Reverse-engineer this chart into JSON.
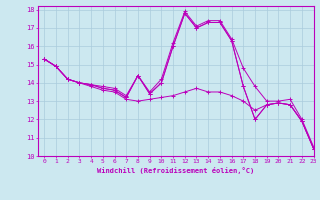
{
  "title": "",
  "xlabel": "Windchill (Refroidissement éolien,°C)",
  "ylabel": "",
  "xlim": [
    -0.5,
    23
  ],
  "ylim": [
    10,
    18.2
  ],
  "yticks": [
    10,
    11,
    12,
    13,
    14,
    15,
    16,
    17,
    18
  ],
  "xticks": [
    0,
    1,
    2,
    3,
    4,
    5,
    6,
    7,
    8,
    9,
    10,
    11,
    12,
    13,
    14,
    15,
    16,
    17,
    18,
    19,
    20,
    21,
    22,
    23
  ],
  "bg_color": "#cce8f0",
  "grid_color": "#aaccdd",
  "line_color": "#bb00bb",
  "lines": [
    [
      15.3,
      14.9,
      14.2,
      14.0,
      13.8,
      13.6,
      13.5,
      13.1,
      13.0,
      13.1,
      13.2,
      13.3,
      13.5,
      13.7,
      13.5,
      13.5,
      13.3,
      13.0,
      12.5,
      12.8,
      12.9,
      12.8,
      11.9,
      10.4
    ],
    [
      15.3,
      14.9,
      14.2,
      14.0,
      13.9,
      13.7,
      13.6,
      13.2,
      14.4,
      13.4,
      14.0,
      16.0,
      17.8,
      17.0,
      17.3,
      17.3,
      16.3,
      13.8,
      12.0,
      12.8,
      12.9,
      12.8,
      11.9,
      10.4
    ],
    [
      15.3,
      14.9,
      14.2,
      14.0,
      13.9,
      13.7,
      13.6,
      13.2,
      14.4,
      13.4,
      14.0,
      16.0,
      17.8,
      17.0,
      17.3,
      17.3,
      16.3,
      13.8,
      12.0,
      12.8,
      12.9,
      12.8,
      11.9,
      10.4
    ],
    [
      15.3,
      14.9,
      14.2,
      14.0,
      13.9,
      13.8,
      13.7,
      13.3,
      14.4,
      13.5,
      14.2,
      16.2,
      17.9,
      17.1,
      17.4,
      17.4,
      16.4,
      14.8,
      13.8,
      13.0,
      13.0,
      13.1,
      12.0,
      10.5
    ]
  ]
}
